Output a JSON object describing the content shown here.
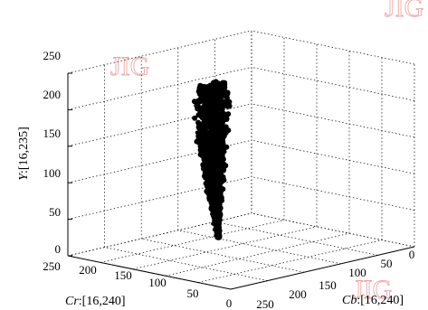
{
  "chart_data": {
    "type": "scatter",
    "dimensions": 3,
    "xlabel_var": "Cb",
    "xlabel_range": ":[16,240]",
    "ylabel_var": "Cr",
    "ylabel_range": ":[16,240]",
    "zlabel_var": "Y",
    "zlabel_range": ":[16,235]",
    "x_ticks": [
      "50",
      "100",
      "150",
      "200",
      "250"
    ],
    "y_ticks": [
      "250",
      "200",
      "150",
      "100",
      "50",
      "0"
    ],
    "z_ticks": [
      "0",
      "50",
      "100",
      "150",
      "200",
      "250"
    ],
    "x_origin_label": "0",
    "xlim": [
      0,
      250
    ],
    "ylim": [
      0,
      250
    ],
    "zlim": [
      0,
      250
    ],
    "grid": true,
    "marker_color": "#000000",
    "cluster": [
      {
        "z": 215,
        "x_min": 95,
        "x_max": 125,
        "y_min": 140,
        "y_max": 165
      },
      {
        "z": 195,
        "x_min": 95,
        "x_max": 125,
        "y_min": 140,
        "y_max": 165
      },
      {
        "z": 175,
        "x_min": 95,
        "x_max": 125,
        "y_min": 140,
        "y_max": 165
      },
      {
        "z": 155,
        "x_min": 96,
        "x_max": 122,
        "y_min": 140,
        "y_max": 162
      },
      {
        "z": 135,
        "x_min": 97,
        "x_max": 120,
        "y_min": 140,
        "y_max": 160
      },
      {
        "z": 115,
        "x_min": 99,
        "x_max": 118,
        "y_min": 140,
        "y_max": 157
      },
      {
        "z": 95,
        "x_min": 100,
        "x_max": 116,
        "y_min": 140,
        "y_max": 154
      },
      {
        "z": 75,
        "x_min": 102,
        "x_max": 113,
        "y_min": 140,
        "y_max": 150
      },
      {
        "z": 55,
        "x_min": 104,
        "x_max": 111,
        "y_min": 140,
        "y_max": 146
      },
      {
        "z": 35,
        "x_min": 106,
        "x_max": 109,
        "y_min": 140,
        "y_max": 143
      },
      {
        "z": 20,
        "x_min": 107,
        "x_max": 109,
        "y_min": 140,
        "y_max": 141
      }
    ],
    "outliers": [
      {
        "x": 97,
        "y": 160,
        "z": 170
      },
      {
        "x": 96,
        "y": 160,
        "z": 163
      },
      {
        "x": 95,
        "y": 158,
        "z": 154
      },
      {
        "x": 106,
        "y": 147,
        "z": 38
      },
      {
        "x": 107,
        "y": 146,
        "z": 30
      },
      {
        "x": 108,
        "y": 145,
        "z": 22
      }
    ]
  },
  "watermark": "JIG"
}
